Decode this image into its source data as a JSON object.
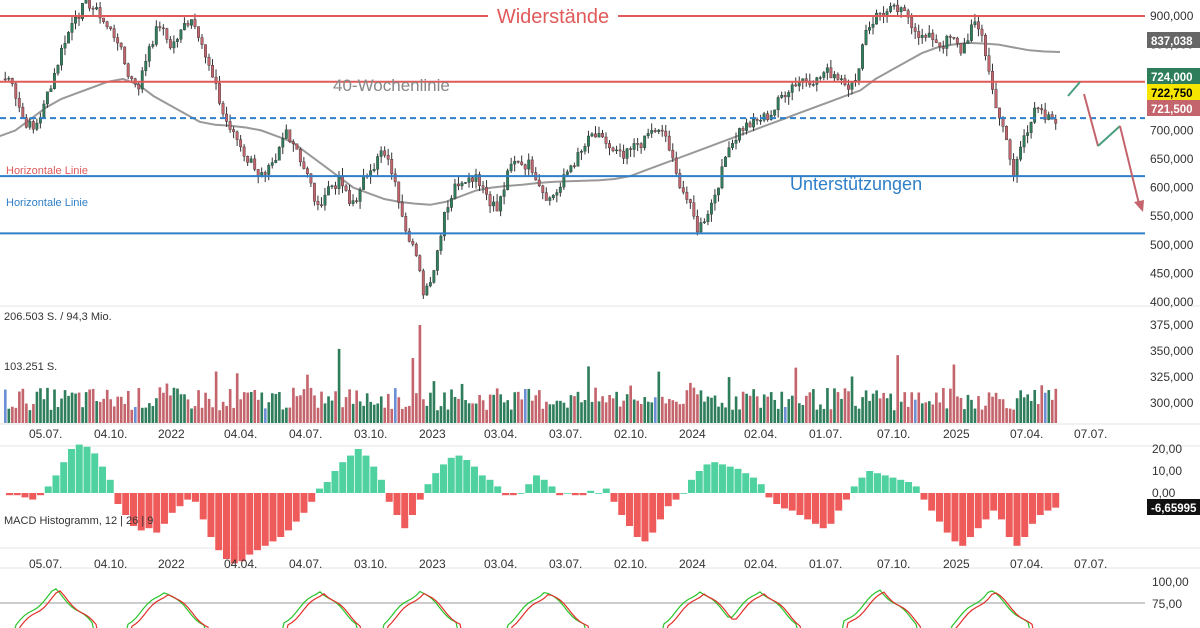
{
  "colors": {
    "up": "#2e7d5b",
    "down": "#c4646c",
    "resistance": "#e05a5a",
    "support": "#2f7fc9",
    "ma": "#999999",
    "macd_pos": "#4fd1a0",
    "macd_neg": "#ef5a5a",
    "stoch_k": "#29c429",
    "stoch_d": "#e0302a"
  },
  "annotations": {
    "resistance_label": "Widerstände",
    "support_label": "Unterstützungen",
    "ma_label": "40-Wochenlinie",
    "hline_label_1": "Horizontale Linie",
    "hline_label_2": "Horizontale Linie"
  },
  "panels": {
    "volume_label_top": "206.503 S. / 94,3 Mio.",
    "volume_label_mid": "103.251 S.",
    "macd_label": "MACD Histogramm, 12 | 26 | 9"
  },
  "price_tags": [
    {
      "text": "837,038",
      "bg": "#666666",
      "fg": "#ffffff",
      "value": 837038
    },
    {
      "text": "724,000",
      "bg": "#2e7d5b",
      "fg": "#ffffff",
      "value": 724000
    },
    {
      "text": "722,750",
      "bg": "#f5e500",
      "fg": "#000000",
      "value": 722750
    },
    {
      "text": "721,500",
      "bg": "#c4646c",
      "fg": "#ffffff",
      "value": 721500
    },
    {
      "text": "-6,65995",
      "bg": "#111111",
      "fg": "#ffffff",
      "value": -6.65995
    }
  ],
  "chart_data": [
    {
      "type": "candlestick",
      "title": "",
      "y_ticks": [
        "900,000",
        "850,000",
        "800,000",
        "750,000",
        "700,000",
        "650,000",
        "600,000",
        "550,000",
        "500,000",
        "450,000",
        "400,000"
      ],
      "ylim": [
        395000,
        915000
      ],
      "horizontal_lines": [
        {
          "name": "Widerstände",
          "value": 900000
        },
        {
          "name": "Widerstände",
          "value": 785000
        },
        {
          "name": "Unterstützungen",
          "value": 620000
        },
        {
          "name": "Unterstützungen",
          "value": 520000
        },
        {
          "name": "dashed",
          "value": 721500
        }
      ],
      "weekly_close": [
        790000,
        722000,
        700000,
        740000,
        800000,
        860000,
        905000,
        920000,
        905000,
        880000,
        860000,
        800000,
        780000,
        850000,
        885000,
        850000,
        870000,
        900000,
        860000,
        790000,
        730000,
        690000,
        660000,
        640000,
        615000,
        640000,
        700000,
        670000,
        620000,
        560000,
        600000,
        610000,
        570000,
        590000,
        640000,
        660000,
        630000,
        560000,
        500000,
        420000,
        460000,
        560000,
        600000,
        620000,
        625000,
        590000,
        560000,
        620000,
        650000,
        640000,
        610000,
        580000,
        600000,
        640000,
        660000,
        690000,
        680000,
        660000,
        650000,
        670000,
        680000,
        700000,
        690000,
        620000,
        580000,
        530000,
        560000,
        610000,
        680000,
        700000,
        710000,
        720000,
        730000,
        760000,
        780000,
        790000,
        790000,
        800000,
        800000,
        790000,
        780000,
        880000,
        900000,
        905000,
        910000,
        900000,
        870000,
        860000,
        850000,
        860000,
        840000,
        880000,
        870000,
        770000,
        700000,
        620000,
        700000,
        730000,
        720000,
        721500
      ],
      "ma_40w": [
        690000,
        700000,
        720000,
        740000,
        755000,
        765000,
        775000,
        785000,
        790000,
        780000,
        760000,
        745000,
        730000,
        715000,
        710000,
        708000,
        705000,
        700000,
        690000,
        680000,
        660000,
        640000,
        620000,
        600000,
        590000,
        580000,
        575000,
        572000,
        570000,
        575000,
        585000,
        595000,
        600000,
        603000,
        605000,
        608000,
        610000,
        611000,
        612000,
        613000,
        615000,
        620000,
        630000,
        640000,
        650000,
        660000,
        670000,
        680000,
        690000,
        700000,
        710000,
        720000,
        730000,
        740000,
        750000,
        760000,
        770000,
        790000,
        805000,
        820000,
        835000,
        845000,
        850000,
        853000,
        852000,
        850000,
        845000,
        840000,
        838000,
        837038
      ],
      "x_ticks": [
        "05.07.",
        "04.10.",
        "2022",
        "04.04.",
        "04.07.",
        "03.10.",
        "2023",
        "03.04.",
        "03.07.",
        "02.10.",
        "2024",
        "02.04.",
        "01.07.",
        "07.10.",
        "2025",
        "07.04.",
        "07.07."
      ]
    },
    {
      "type": "bar",
      "title": "",
      "y_ticks": [
        "375,000",
        "350,000",
        "325,000",
        "300,000"
      ],
      "ylim": [
        280000,
        380000
      ],
      "max_volume": 206503,
      "mid_volume": 103251
    },
    {
      "type": "bar",
      "title": "",
      "y_ticks": [
        "20,00",
        "10,00",
        "0,00"
      ],
      "ylim": [
        -32,
        26
      ],
      "last_value": -6.65995,
      "histogram": [
        -1,
        -1,
        -2,
        -3,
        -1,
        3,
        8,
        14,
        20,
        22,
        21,
        18,
        12,
        6,
        -5,
        -10,
        -15,
        -17,
        -16,
        -18,
        -14,
        -9,
        -6,
        -3,
        -4,
        -12,
        -20,
        -26,
        -30,
        -32,
        -31,
        -28,
        -26,
        -24,
        -22,
        -20,
        -17,
        -13,
        -9,
        -4,
        2,
        5,
        10,
        14,
        17,
        20,
        17,
        12,
        6,
        -4,
        -10,
        -16,
        -10,
        -3,
        4,
        9,
        13,
        16,
        17,
        15,
        12,
        8,
        6,
        3,
        -1,
        -1,
        0,
        4,
        8,
        6,
        3,
        -1,
        0,
        -1,
        -1,
        1,
        0,
        2,
        -4,
        -10,
        -15,
        -20,
        -22,
        -18,
        -12,
        -6,
        -3,
        0,
        6,
        10,
        13,
        14,
        13,
        12,
        11,
        9,
        7,
        4,
        -2,
        -5,
        -7,
        -8,
        -10,
        -12,
        -14,
        -16,
        -14,
        -8,
        -3,
        3,
        7,
        10,
        9,
        8,
        7,
        6,
        5,
        3,
        -3,
        -8,
        -13,
        -18,
        -22,
        -24,
        -20,
        -16,
        -12,
        -8,
        -12,
        -20,
        -24,
        -20,
        -14,
        -10,
        -8,
        -6.66
      ]
    },
    {
      "type": "line",
      "title": "",
      "y_ticks": [
        "100,00",
        "75,00"
      ],
      "ylim": [
        60,
        105
      ]
    }
  ]
}
